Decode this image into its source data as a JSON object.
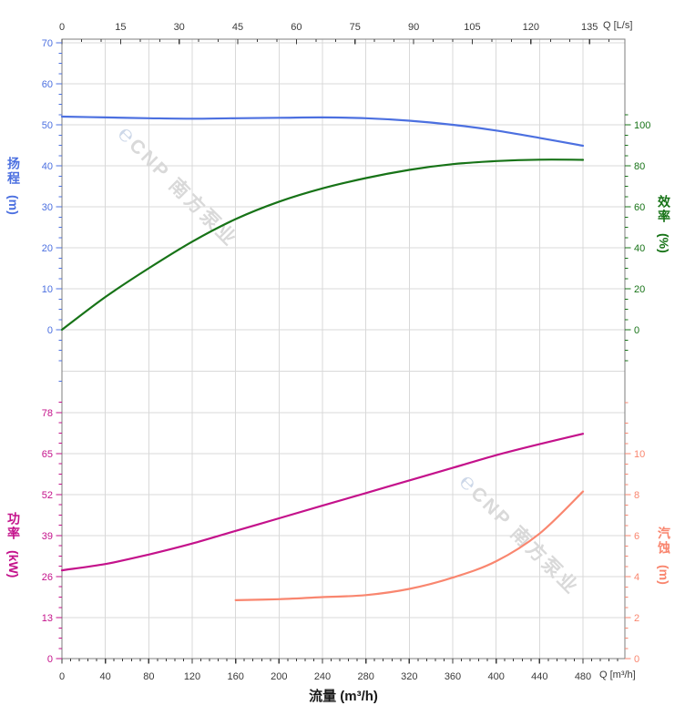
{
  "watermark": {
    "logo_glyph": "℮",
    "brand": "CNP 南方泵业"
  },
  "colors": {
    "head": "#4c70e0",
    "efficiency": "#177317",
    "power": "#c4128b",
    "npsh": "#f9866f",
    "x_tick": "#3a3a3a",
    "grid": "#d9d9d9",
    "spine": "#7d7d7d",
    "watermark_text": "#d9d9d9",
    "watermark_logo": "#ccd7e8"
  },
  "chart_data": {
    "type": "line",
    "title": "",
    "grid": "on",
    "legend": "none",
    "x_axis_top": {
      "label": "Q [L/s]",
      "ticks": [
        0,
        15,
        30,
        45,
        60,
        75,
        90,
        105,
        120,
        135
      ],
      "minor_step": 5,
      "range": [
        0,
        144
      ]
    },
    "x_axis_bottom": {
      "label": "Q [m³/h]",
      "title": "流量 (m³/h)",
      "ticks": [
        0,
        40,
        80,
        120,
        160,
        200,
        240,
        280,
        320,
        360,
        400,
        440,
        480
      ],
      "minor_step": 8,
      "range": [
        0,
        519
      ]
    },
    "y_axes": {
      "head": {
        "cjk": "扬程",
        "unit": "(m)",
        "label": "扬程 (m)",
        "ticks": [
          70,
          60,
          50,
          40,
          30,
          20,
          10,
          0
        ],
        "minor_step": 2.5,
        "range": [
          0,
          70
        ],
        "side": "left-top"
      },
      "efficiency": {
        "cjk": "效率",
        "unit": "(%)",
        "label": "效率 (%)",
        "ticks": [
          100,
          80,
          60,
          40,
          20,
          0
        ],
        "minor_step": 5,
        "range": [
          0,
          100
        ],
        "side": "right-top"
      },
      "power": {
        "cjk": "功率",
        "unit": "(kW)",
        "label": "功率 (kW)",
        "ticks": [
          78,
          65,
          52,
          39,
          26,
          13,
          0
        ],
        "minor_step": 3.25,
        "range": [
          0,
          78
        ],
        "side": "left-bottom"
      },
      "npsh": {
        "cjk": "汽蚀",
        "unit": "(m)",
        "label": "汽蚀 (m)",
        "ticks": [
          10,
          8,
          6,
          4,
          2,
          0
        ],
        "minor_step": 0.5,
        "range": [
          0,
          10
        ],
        "side": "right-bottom"
      }
    },
    "series": [
      {
        "name": "扬程",
        "id": "head-curve",
        "axis": "head",
        "x": [
          0,
          40,
          80,
          120,
          160,
          200,
          240,
          280,
          320,
          360,
          400,
          440,
          480
        ],
        "y": [
          52,
          51.8,
          51.6,
          51.5,
          51.6,
          51.7,
          51.8,
          51.6,
          51,
          50,
          48.6,
          46.8,
          44.9
        ]
      },
      {
        "name": "效率",
        "id": "efficiency-curve",
        "axis": "efficiency",
        "x": [
          0,
          40,
          80,
          120,
          160,
          200,
          240,
          280,
          320,
          360,
          400,
          440,
          480
        ],
        "y": [
          0,
          16,
          30,
          43,
          54,
          62.5,
          69,
          74,
          78,
          80.8,
          82.3,
          83,
          82.9
        ]
      },
      {
        "name": "功率",
        "id": "power-curve",
        "axis": "power",
        "x": [
          0,
          40,
          80,
          120,
          160,
          200,
          240,
          280,
          320,
          360,
          400,
          440,
          480
        ],
        "y": [
          28,
          30,
          33,
          36.5,
          40.5,
          44.5,
          48.5,
          52.5,
          56.5,
          60.5,
          64.5,
          68,
          71.3
        ]
      },
      {
        "name": "汽蚀",
        "id": "npsh-curve",
        "axis": "npsh",
        "x": [
          160,
          200,
          240,
          280,
          320,
          360,
          400,
          440,
          480
        ],
        "y": [
          2.85,
          2.9,
          3.0,
          3.1,
          3.4,
          3.95,
          4.75,
          6.1,
          8.15
        ]
      }
    ]
  }
}
